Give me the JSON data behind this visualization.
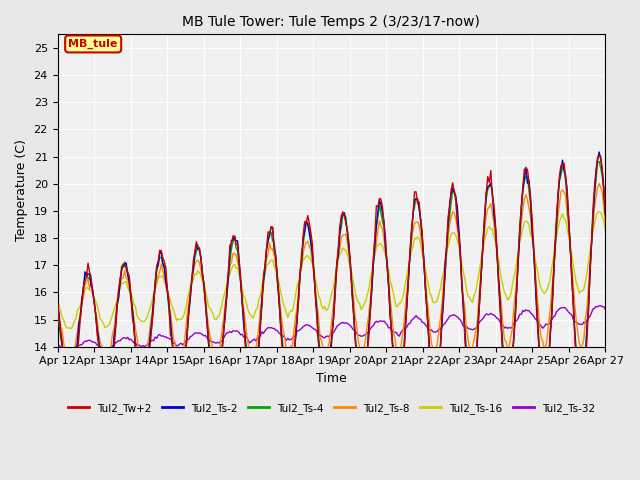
{
  "title": "MB Tule Tower: Tule Temps 2 (3/23/17-now)",
  "xlabel": "Time",
  "ylabel": "Temperature (C)",
  "ylim": [
    14.0,
    25.5
  ],
  "yticks": [
    14.0,
    15.0,
    16.0,
    17.0,
    18.0,
    19.0,
    20.0,
    21.0,
    22.0,
    23.0,
    24.0,
    25.0
  ],
  "bg_color": "#e8e8e8",
  "plot_bg_color": "#f0f0f0",
  "legend_box_color": "#ffff99",
  "legend_box_edge": "#cc0000",
  "legend_box_label": "MB_tule",
  "series_colors": {
    "Tul2_Tw+2": "#cc0000",
    "Tul2_Ts-2": "#0000cc",
    "Tul2_Ts-4": "#00aa00",
    "Tul2_Ts-8": "#ff8800",
    "Tul2_Ts-16": "#cccc00",
    "Tul2_Ts-32": "#9900cc"
  },
  "xtick_labels": [
    "Apr 12",
    "Apr 13",
    "Apr 14",
    "Apr 15",
    "Apr 16",
    "Apr 17",
    "Apr 18",
    "Apr 19",
    "Apr 20",
    "Apr 21",
    "Apr 22",
    "Apr 23",
    "Apr 24",
    "Apr 25",
    "Apr 26",
    "Apr 27"
  ],
  "n_days": 15
}
